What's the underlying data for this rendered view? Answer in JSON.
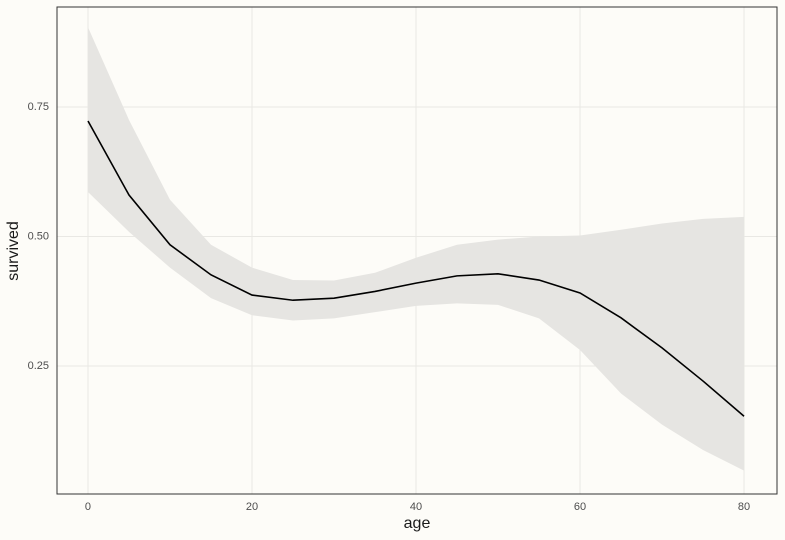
{
  "chart_data": {
    "type": "line",
    "xlabel": "age",
    "ylabel": "survived",
    "x": [
      0,
      5,
      10,
      15,
      20,
      25,
      30,
      35,
      40,
      45,
      50,
      55,
      60,
      65,
      70,
      75,
      80
    ],
    "values": [
      0.723,
      0.58,
      0.484,
      0.426,
      0.387,
      0.377,
      0.381,
      0.394,
      0.41,
      0.424,
      0.428,
      0.416,
      0.391,
      0.343,
      0.285,
      0.221,
      0.153
    ],
    "band": {
      "upper": [
        0.904,
        0.725,
        0.571,
        0.484,
        0.44,
        0.416,
        0.415,
        0.43,
        0.459,
        0.484,
        0.494,
        0.5,
        0.502,
        0.513,
        0.525,
        0.534,
        0.538
      ],
      "lower": [
        0.586,
        0.509,
        0.44,
        0.381,
        0.348,
        0.338,
        0.342,
        0.354,
        0.366,
        0.371,
        0.368,
        0.342,
        0.281,
        0.197,
        0.137,
        0.088,
        0.048
      ]
    },
    "color": "#000000",
    "band_color": "#e6e5e2",
    "xlim": [
      -3.78,
      84.02
    ],
    "xticks": [
      0,
      20,
      40,
      60,
      80
    ],
    "ylim": [
      0.003,
      0.943
    ],
    "yticks": [
      0.25,
      {
        "value": 0.5,
        "label": "0.50"
      },
      0.75
    ],
    "grid": true
  }
}
